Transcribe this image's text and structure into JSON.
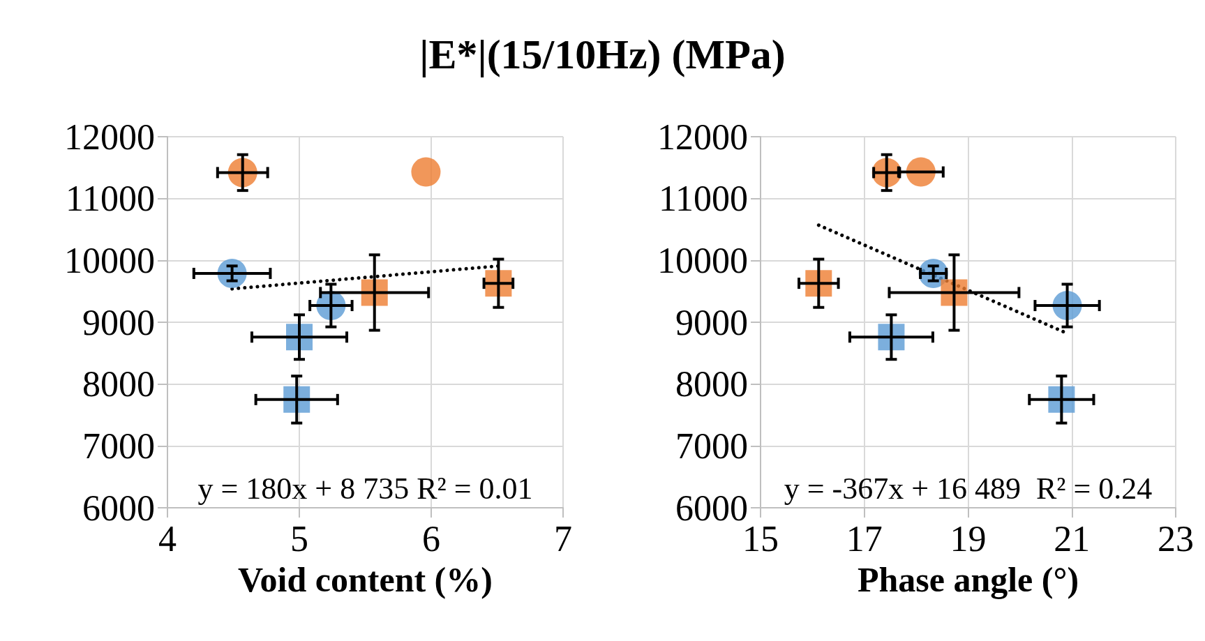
{
  "chart_data": [
    {
      "type": "scatter",
      "title": "|E*|(15/10Hz) (MPa)",
      "xlabel": "Void content (%)",
      "xlim": [
        4,
        7
      ],
      "xticks": [
        4,
        5,
        6,
        7
      ],
      "ylim": [
        6000,
        12000
      ],
      "yticks": [
        6000,
        7000,
        8000,
        9000,
        10000,
        11000,
        12000
      ],
      "grid": true,
      "annotations": [
        "y = 180x + 8 735 R² = 0.01"
      ],
      "series": [
        {
          "color": "#ed7d31",
          "marker": "circle",
          "x": [
            4.57
          ],
          "values": [
            11420
          ],
          "xerrors": [
            0.19
          ],
          "errors": [
            290
          ]
        },
        {
          "color": "#ed7d31",
          "marker": "circle",
          "x": [
            5.96
          ],
          "values": [
            11430
          ]
        },
        {
          "color": "#5b9bd5",
          "marker": "circle",
          "x": [
            4.49
          ],
          "values": [
            9790
          ],
          "xerrors": [
            0.29
          ],
          "errors": [
            120
          ]
        },
        {
          "color": "#5b9bd5",
          "marker": "circle",
          "x": [
            5.24
          ],
          "values": [
            9270
          ],
          "xerrors": [
            0.16
          ],
          "errors": [
            345
          ]
        },
        {
          "color": "#ed7d31",
          "marker": "square",
          "x": [
            5.57
          ],
          "values": [
            9480
          ],
          "xerrors": [
            0.41
          ],
          "errors": [
            610
          ]
        },
        {
          "color": "#ed7d31",
          "marker": "square",
          "x": [
            6.51
          ],
          "values": [
            9630
          ],
          "xerrors": [
            0.11
          ],
          "errors": [
            390
          ]
        },
        {
          "color": "#5b9bd5",
          "marker": "square",
          "x": [
            5.0
          ],
          "values": [
            8760
          ],
          "xerrors": [
            0.36
          ],
          "errors": [
            360
          ]
        },
        {
          "color": "#5b9bd5",
          "marker": "square",
          "x": [
            4.98
          ],
          "values": [
            7750
          ],
          "xerrors": [
            0.31
          ],
          "errors": [
            380
          ]
        },
        {
          "type": "line",
          "color": "#000000",
          "marker": "none",
          "line_style": "dotted",
          "x": [
            4.49,
            6.51
          ],
          "values": [
            9540,
            9910
          ]
        }
      ]
    },
    {
      "type": "scatter",
      "xlabel": "Phase angle (°)",
      "xlim": [
        15,
        23
      ],
      "xticks": [
        15,
        17,
        19,
        21,
        23
      ],
      "ylim": [
        6000,
        12000
      ],
      "yticks": [
        6000,
        7000,
        8000,
        9000,
        10000,
        11000,
        12000
      ],
      "grid": true,
      "annotations": [
        "y = -367x + 16 489  R² = 0.24"
      ],
      "series": [
        {
          "color": "#ed7d31",
          "marker": "circle",
          "x": [
            17.43
          ],
          "values": [
            11420
          ],
          "xerrors": [
            0.25
          ],
          "errors": [
            290
          ]
        },
        {
          "color": "#ed7d31",
          "marker": "circle",
          "x": [
            18.09
          ],
          "values": [
            11430
          ],
          "xerrors": [
            0.43
          ]
        },
        {
          "color": "#ed7d31",
          "marker": "square",
          "x": [
            16.12
          ],
          "values": [
            9630
          ],
          "xerrors": [
            0.38
          ],
          "errors": [
            390
          ]
        },
        {
          "color": "#5b9bd5",
          "marker": "circle",
          "x": [
            18.33
          ],
          "values": [
            9790
          ],
          "xerrors": [
            0.25
          ],
          "errors": [
            120
          ]
        },
        {
          "color": "#ed7d31",
          "marker": "square",
          "x": [
            18.73
          ],
          "values": [
            9480
          ],
          "xerrors": [
            1.25
          ],
          "errors": [
            610
          ]
        },
        {
          "color": "#5b9bd5",
          "marker": "circle",
          "x": [
            20.91
          ],
          "values": [
            9270
          ],
          "xerrors": [
            0.62
          ],
          "errors": [
            345
          ]
        },
        {
          "color": "#5b9bd5",
          "marker": "square",
          "x": [
            17.52
          ],
          "values": [
            8760
          ],
          "xerrors": [
            0.8
          ],
          "errors": [
            360
          ]
        },
        {
          "color": "#5b9bd5",
          "marker": "square",
          "x": [
            20.8
          ],
          "values": [
            7750
          ],
          "xerrors": [
            0.62
          ],
          "errors": [
            380
          ]
        },
        {
          "type": "line",
          "color": "#000000",
          "marker": "none",
          "line_style": "dotted",
          "x": [
            16.12,
            20.91
          ],
          "values": [
            10570,
            8820
          ]
        }
      ]
    }
  ]
}
